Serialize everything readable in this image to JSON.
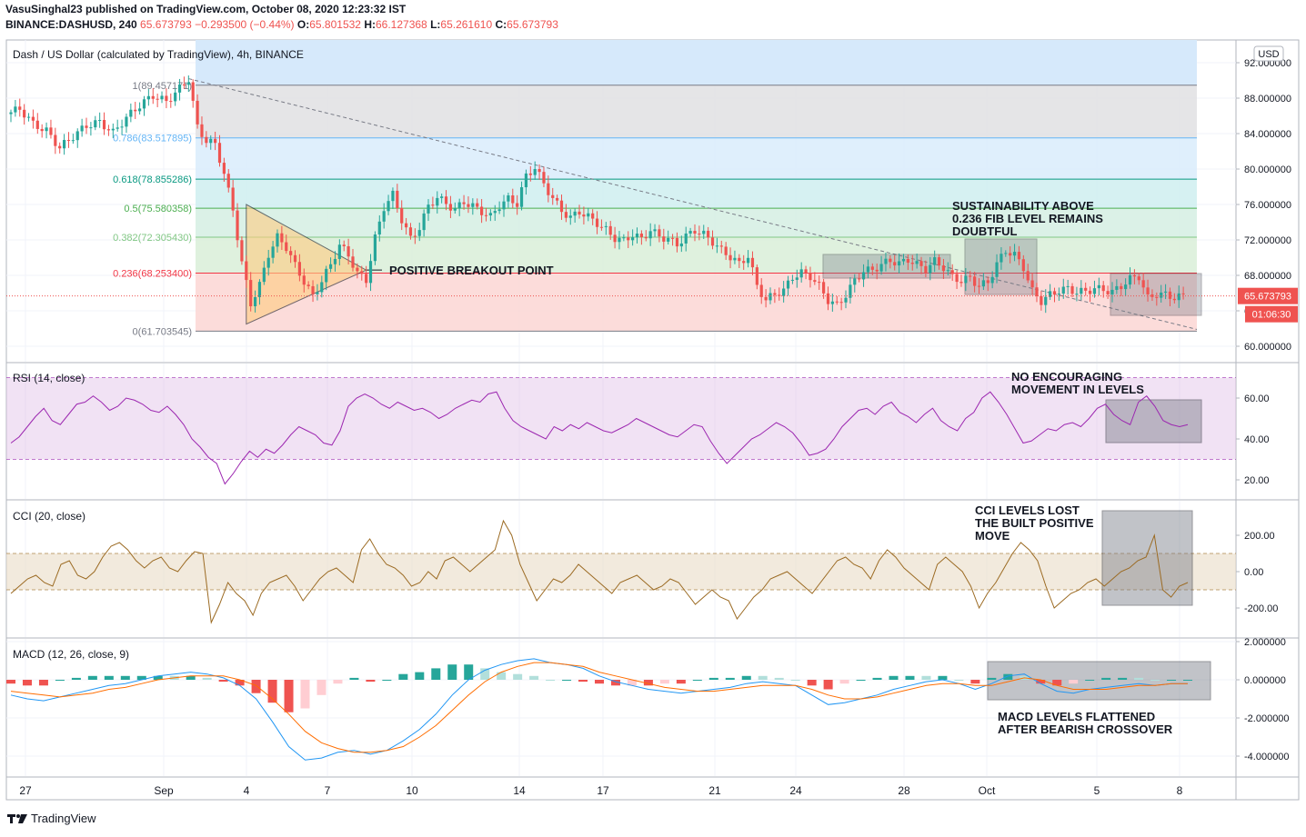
{
  "header": {
    "publisher_line": "VasuSinghal23 published on TradingView.com, October 08, 2020 12:23:32 IST",
    "symbol": "BINANCE:DASHUSD, 240",
    "last": "65.673793",
    "change": "−0.293500 (−0.44%)",
    "o_label": "O:",
    "o": "65.801532",
    "h_label": "H:",
    "h": "66.127368",
    "l_label": "L:",
    "l": "65.261610",
    "c_label": "C:",
    "c": "65.673793"
  },
  "footer": {
    "brand": "TradingView"
  },
  "colors": {
    "up": "#26a69a",
    "down": "#ef5350",
    "rsi": "#9c27b0",
    "cci": "#9b6a22",
    "macd": "#2196f3",
    "signal": "#ff6d00",
    "label_bg": "#ef5350"
  },
  "chart_data": [
    {
      "type": "candlestick",
      "title": "Dash / US Dollar (calculated by TradingView), 4h, BINANCE",
      "currency": "USD",
      "x_tick_labels": [
        "27",
        "Sep",
        "4",
        "7",
        "10",
        "14",
        "17",
        "21",
        "24",
        "28",
        "Oct",
        "5",
        "8"
      ],
      "y_ticks": [
        "92.000000",
        "88.000000",
        "84.000000",
        "80.000000",
        "76.000000",
        "72.000000",
        "68.000000",
        "64.000000",
        "60.000000"
      ],
      "ylim": [
        59,
        93
      ],
      "last_price_label": "65.673793",
      "countdown_label": "01:06:30",
      "fib_levels": [
        {
          "label": "1(89.457171)",
          "value": 89.457171
        },
        {
          "label": "0.786(83.517895)",
          "value": 83.517895
        },
        {
          "label": "0.618(78.855286)",
          "value": 78.855286
        },
        {
          "label": "0.5(75.580358)",
          "value": 75.580358
        },
        {
          "label": "0.382(72.305430)",
          "value": 72.30543
        },
        {
          "label": "0.236(68.253400)",
          "value": 68.2534
        },
        {
          "label": "0(61.703545)",
          "value": 61.703545
        }
      ],
      "close_path": [
        [
          0,
          86.2
        ],
        [
          3,
          86.8
        ],
        [
          6,
          85.1
        ],
        [
          9,
          84.3
        ],
        [
          12,
          82.4
        ],
        [
          15,
          83.7
        ],
        [
          18,
          84.9
        ],
        [
          21,
          85.3
        ],
        [
          24,
          84.1
        ],
        [
          27,
          85.8
        ],
        [
          30,
          87.2
        ],
        [
          33,
          88.3
        ],
        [
          36,
          87.6
        ],
        [
          39,
          89.1
        ],
        [
          41,
          90.2
        ],
        [
          43,
          84.7
        ],
        [
          45,
          83.2
        ],
        [
          47,
          82.8
        ],
        [
          49,
          79.5
        ],
        [
          51,
          75.4
        ],
        [
          53,
          69.4
        ],
        [
          55,
          64.8
        ],
        [
          57,
          66.9
        ],
        [
          59,
          70.4
        ],
        [
          61,
          72.3
        ],
        [
          63,
          71.2
        ],
        [
          65,
          69.1
        ],
        [
          67,
          67.3
        ],
        [
          69,
          65.6
        ],
        [
          71,
          67.4
        ],
        [
          73,
          69.2
        ],
        [
          75,
          71.4
        ],
        [
          77,
          70.3
        ],
        [
          79,
          68.2
        ],
        [
          81,
          67.5
        ],
        [
          83,
          72.2
        ],
        [
          85,
          75.7
        ],
        [
          87,
          77.1
        ],
        [
          89,
          74.3
        ],
        [
          91,
          72.1
        ],
        [
          93,
          73.4
        ],
        [
          95,
          75.8
        ],
        [
          97,
          76.8
        ],
        [
          99,
          76.1
        ],
        [
          101,
          75.4
        ],
        [
          103,
          76.3
        ],
        [
          105,
          75.8
        ],
        [
          107,
          75.2
        ],
        [
          109,
          74.6
        ],
        [
          111,
          75.9
        ],
        [
          113,
          76.6
        ],
        [
          115,
          76.1
        ],
        [
          117,
          79.2
        ],
        [
          119,
          80.2
        ],
        [
          121,
          78.3
        ],
        [
          123,
          76.7
        ],
        [
          125,
          75.3
        ],
        [
          127,
          74.5
        ],
        [
          129,
          75.2
        ],
        [
          131,
          74.6
        ],
        [
          133,
          73.9
        ],
        [
          135,
          73.1
        ],
        [
          137,
          72.2
        ],
        [
          139,
          71.9
        ],
        [
          141,
          72.6
        ],
        [
          143,
          72.1
        ],
        [
          145,
          73.1
        ],
        [
          147,
          72.4
        ],
        [
          149,
          72.1
        ],
        [
          151,
          71.5
        ],
        [
          153,
          72.4
        ],
        [
          155,
          73.1
        ],
        [
          157,
          72.6
        ],
        [
          159,
          71.8
        ],
        [
          161,
          70.8
        ],
        [
          163,
          70.1
        ],
        [
          165,
          69.3
        ],
        [
          167,
          70.2
        ],
        [
          169,
          66.8
        ],
        [
          171,
          65.2
        ],
        [
          173,
          65.9
        ],
        [
          175,
          66.3
        ],
        [
          177,
          67.8
        ],
        [
          179,
          68.3
        ],
        [
          181,
          67.9
        ],
        [
          183,
          66.8
        ],
        [
          185,
          65.2
        ],
        [
          187,
          64.6
        ],
        [
          189,
          65.8
        ],
        [
          191,
          67.4
        ],
        [
          193,
          68.5
        ],
        [
          195,
          68.6
        ],
        [
          197,
          69.2
        ],
        [
          199,
          69.7
        ],
        [
          201,
          69.3
        ],
        [
          203,
          69.8
        ],
        [
          205,
          69.2
        ],
        [
          207,
          68.7
        ],
        [
          209,
          69.6
        ],
        [
          211,
          68.9
        ],
        [
          213,
          67.8
        ],
        [
          215,
          67.4
        ],
        [
          217,
          67.7
        ],
        [
          219,
          66.8
        ],
        [
          221,
          67.2
        ],
        [
          223,
          69.3
        ],
        [
          225,
          70.8
        ],
        [
          227,
          70.3
        ],
        [
          229,
          68.9
        ],
        [
          231,
          66.2
        ],
        [
          233,
          65.1
        ],
        [
          235,
          65.8
        ],
        [
          237,
          66.3
        ],
        [
          239,
          66.5
        ],
        [
          241,
          66.1
        ],
        [
          243,
          66.2
        ],
        [
          245,
          66.5
        ],
        [
          247,
          66.4
        ],
        [
          249,
          66.1
        ],
        [
          251,
          66.8
        ],
        [
          253,
          67.6
        ],
        [
          255,
          67.9
        ],
        [
          257,
          65.4
        ],
        [
          259,
          65.9
        ],
        [
          261,
          65.8
        ],
        [
          263,
          65.5
        ],
        [
          265,
          65.67
        ]
      ],
      "annotations": [
        "POSITIVE BREAKOUT POINT",
        "SUSTAINABILITY ABOVE",
        "0.236 FIB LEVEL REMAINS",
        "DOUBTFUL"
      ]
    },
    {
      "type": "line",
      "title": "RSI (14, close)",
      "y_ticks": [
        "60.00",
        "40.00",
        "20.00"
      ],
      "bands": [
        30,
        70
      ],
      "ylim": [
        14,
        72
      ],
      "values": [
        38,
        41,
        46,
        51,
        55,
        49,
        47,
        52,
        57,
        58,
        61,
        58,
        54,
        56,
        60,
        59,
        57,
        54,
        53,
        56,
        52,
        47,
        40,
        36,
        31,
        28,
        18,
        23,
        29,
        34,
        31,
        35,
        33,
        37,
        42,
        46,
        44,
        42,
        38,
        37,
        44,
        56,
        60,
        62,
        60,
        57,
        55,
        58,
        56,
        54,
        55,
        53,
        50,
        52,
        55,
        57,
        59,
        58,
        62,
        63,
        55,
        49,
        46,
        44,
        42,
        40,
        46,
        44,
        47,
        45,
        48,
        46,
        44,
        43,
        45,
        47,
        50,
        48,
        46,
        44,
        42,
        41,
        44,
        47,
        46,
        39,
        33,
        28,
        32,
        36,
        40,
        42,
        45,
        48,
        46,
        43,
        38,
        32,
        33,
        35,
        40,
        46,
        50,
        54,
        55,
        52,
        56,
        58,
        53,
        51,
        48,
        52,
        55,
        49,
        46,
        44,
        50,
        53,
        60,
        63,
        58,
        52,
        45,
        38,
        39,
        42,
        45,
        44,
        47,
        48,
        46,
        50,
        55,
        57,
        52,
        49,
        47,
        58,
        61,
        56,
        49,
        47,
        46,
        47
      ],
      "annotations": [
        "NO ENCOURAGING",
        "MOVEMENT IN LEVELS"
      ]
    },
    {
      "type": "line",
      "title": "CCI (20, close)",
      "y_ticks": [
        "200.00",
        "0.00",
        "-200.00"
      ],
      "bands": [
        -100,
        100
      ],
      "ylim": [
        -320,
        330
      ],
      "values": [
        -120,
        -80,
        -40,
        -20,
        -60,
        -80,
        40,
        60,
        -20,
        -40,
        0,
        80,
        140,
        160,
        120,
        60,
        20,
        60,
        80,
        20,
        0,
        60,
        110,
        100,
        -280,
        -180,
        -60,
        -120,
        -160,
        -240,
        -120,
        -60,
        -40,
        -20,
        -80,
        -160,
        -100,
        -40,
        0,
        20,
        -20,
        -60,
        120,
        180,
        100,
        40,
        20,
        -20,
        -80,
        -60,
        0,
        -40,
        60,
        80,
        40,
        0,
        40,
        80,
        120,
        280,
        200,
        40,
        -60,
        -160,
        -100,
        -40,
        -60,
        -20,
        40,
        0,
        -40,
        -80,
        -120,
        -60,
        -40,
        -20,
        -60,
        -100,
        -80,
        -40,
        -60,
        -120,
        -180,
        -140,
        -100,
        -140,
        -160,
        -260,
        -200,
        -140,
        -100,
        -40,
        -20,
        0,
        -40,
        -80,
        -120,
        -60,
        0,
        60,
        80,
        40,
        20,
        -40,
        60,
        120,
        80,
        20,
        -20,
        -60,
        -100,
        40,
        80,
        40,
        0,
        -80,
        -200,
        -120,
        -60,
        20,
        100,
        160,
        120,
        60,
        -80,
        -200,
        -160,
        -120,
        -100,
        -60,
        -40,
        -80,
        -40,
        0,
        20,
        60,
        80,
        200,
        -100,
        -140,
        -80,
        -60
      ],
      "annotations": [
        "CCI LEVELS LOST",
        "THE BUILT POSITIVE",
        "MOVE"
      ]
    },
    {
      "type": "line",
      "title": "MACD (12, 26, close, 9)",
      "y_ticks": [
        "2.000000",
        "0.000000",
        "-2.000000",
        "-4.000000"
      ],
      "ylim": [
        -5.2,
        2.3
      ],
      "macd": [
        -0.8,
        -1.0,
        -1.1,
        -0.9,
        -0.7,
        -0.5,
        -0.3,
        -0.2,
        0.0,
        0.2,
        0.3,
        0.4,
        0.3,
        0.1,
        -0.3,
        -1.0,
        -2.2,
        -3.5,
        -4.2,
        -4.1,
        -3.8,
        -3.7,
        -3.9,
        -3.7,
        -3.2,
        -2.6,
        -1.8,
        -0.8,
        0.0,
        0.5,
        0.8,
        1.0,
        1.1,
        0.9,
        0.8,
        0.6,
        0.2,
        -0.1,
        -0.3,
        -0.5,
        -0.6,
        -0.7,
        -0.6,
        -0.5,
        -0.4,
        -0.2,
        -0.1,
        -0.2,
        -0.3,
        -0.8,
        -1.3,
        -1.2,
        -1.0,
        -0.8,
        -0.5,
        -0.3,
        -0.1,
        0.0,
        -0.2,
        -0.5,
        -0.2,
        0.2,
        0.3,
        -0.2,
        -0.6,
        -0.7,
        -0.5,
        -0.4,
        -0.3,
        -0.2,
        -0.3,
        -0.2,
        -0.2
      ],
      "signal": [
        -0.6,
        -0.7,
        -0.8,
        -0.9,
        -0.8,
        -0.7,
        -0.5,
        -0.4,
        -0.2,
        0.0,
        0.1,
        0.2,
        0.2,
        0.2,
        0.0,
        -0.3,
        -1.0,
        -1.8,
        -2.7,
        -3.3,
        -3.6,
        -3.8,
        -3.8,
        -3.7,
        -3.5,
        -3.0,
        -2.4,
        -1.6,
        -0.8,
        -0.1,
        0.4,
        0.7,
        0.9,
        0.9,
        0.8,
        0.7,
        0.4,
        0.2,
        0.0,
        -0.2,
        -0.4,
        -0.5,
        -0.6,
        -0.6,
        -0.5,
        -0.4,
        -0.3,
        -0.3,
        -0.3,
        -0.5,
        -0.8,
        -1.0,
        -1.0,
        -0.9,
        -0.7,
        -0.5,
        -0.3,
        -0.2,
        -0.2,
        -0.3,
        -0.3,
        -0.1,
        0.1,
        0.0,
        -0.3,
        -0.5,
        -0.5,
        -0.5,
        -0.4,
        -0.3,
        -0.3,
        -0.2,
        -0.2
      ],
      "annotations": [
        "MACD LEVELS FLATTENED",
        "AFTER BEARISH CROSSOVER"
      ]
    }
  ]
}
